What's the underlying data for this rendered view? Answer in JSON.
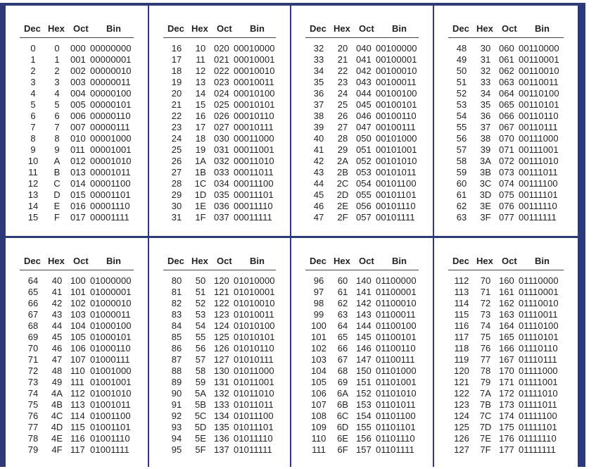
{
  "headers": {
    "dec": "Dec",
    "hex": "Hex",
    "oct": "Oct",
    "bin": "Bin"
  },
  "tables": [
    {
      "rows": [
        [
          "0",
          "0",
          "000",
          "00000000"
        ],
        [
          "1",
          "1",
          "001",
          "00000001"
        ],
        [
          "2",
          "2",
          "002",
          "00000010"
        ],
        [
          "3",
          "3",
          "003",
          "00000011"
        ],
        [
          "4",
          "4",
          "004",
          "00000100"
        ],
        [
          "5",
          "5",
          "005",
          "00000101"
        ],
        [
          "6",
          "6",
          "006",
          "00000110"
        ],
        [
          "7",
          "7",
          "007",
          "00000111"
        ],
        [
          "8",
          "8",
          "010",
          "00001000"
        ],
        [
          "9",
          "9",
          "011",
          "00001001"
        ],
        [
          "10",
          "A",
          "012",
          "00001010"
        ],
        [
          "11",
          "B",
          "013",
          "00001011"
        ],
        [
          "12",
          "C",
          "014",
          "00001100"
        ],
        [
          "13",
          "D",
          "015",
          "00001101"
        ],
        [
          "14",
          "E",
          "016",
          "00001110"
        ],
        [
          "15",
          "F",
          "017",
          "00001111"
        ]
      ]
    },
    {
      "rows": [
        [
          "16",
          "10",
          "020",
          "00010000"
        ],
        [
          "17",
          "11",
          "021",
          "00010001"
        ],
        [
          "18",
          "12",
          "022",
          "00010010"
        ],
        [
          "19",
          "13",
          "023",
          "00010011"
        ],
        [
          "20",
          "14",
          "024",
          "00010100"
        ],
        [
          "21",
          "15",
          "025",
          "00010101"
        ],
        [
          "22",
          "16",
          "026",
          "00010110"
        ],
        [
          "23",
          "17",
          "027",
          "00010111"
        ],
        [
          "24",
          "18",
          "030",
          "00011000"
        ],
        [
          "25",
          "19",
          "031",
          "00011001"
        ],
        [
          "26",
          "1A",
          "032",
          "00011010"
        ],
        [
          "27",
          "1B",
          "033",
          "00011011"
        ],
        [
          "28",
          "1C",
          "034",
          "00011100"
        ],
        [
          "29",
          "1D",
          "035",
          "00011101"
        ],
        [
          "30",
          "1E",
          "036",
          "00011110"
        ],
        [
          "31",
          "1F",
          "037",
          "00011111"
        ]
      ]
    },
    {
      "rows": [
        [
          "32",
          "20",
          "040",
          "00100000"
        ],
        [
          "33",
          "21",
          "041",
          "00100001"
        ],
        [
          "34",
          "22",
          "042",
          "00100010"
        ],
        [
          "35",
          "23",
          "043",
          "00100011"
        ],
        [
          "36",
          "24",
          "044",
          "00100100"
        ],
        [
          "37",
          "25",
          "045",
          "00100101"
        ],
        [
          "38",
          "26",
          "046",
          "00100110"
        ],
        [
          "39",
          "27",
          "047",
          "00100111"
        ],
        [
          "40",
          "28",
          "050",
          "00101000"
        ],
        [
          "41",
          "29",
          "051",
          "00101001"
        ],
        [
          "42",
          "2A",
          "052",
          "00101010"
        ],
        [
          "43",
          "2B",
          "053",
          "00101011"
        ],
        [
          "44",
          "2C",
          "054",
          "00101100"
        ],
        [
          "45",
          "2D",
          "055",
          "00101101"
        ],
        [
          "46",
          "2E",
          "056",
          "00101110"
        ],
        [
          "47",
          "2F",
          "057",
          "00101111"
        ]
      ]
    },
    {
      "rows": [
        [
          "48",
          "30",
          "060",
          "00110000"
        ],
        [
          "49",
          "31",
          "061",
          "00110001"
        ],
        [
          "50",
          "32",
          "062",
          "00110010"
        ],
        [
          "51",
          "33",
          "063",
          "00110011"
        ],
        [
          "52",
          "34",
          "064",
          "00110100"
        ],
        [
          "53",
          "35",
          "065",
          "00110101"
        ],
        [
          "54",
          "36",
          "066",
          "00110110"
        ],
        [
          "55",
          "37",
          "067",
          "00110111"
        ],
        [
          "56",
          "38",
          "070",
          "00111000"
        ],
        [
          "57",
          "39",
          "071",
          "00111001"
        ],
        [
          "58",
          "3A",
          "072",
          "00111010"
        ],
        [
          "59",
          "3B",
          "073",
          "00111011"
        ],
        [
          "60",
          "3C",
          "074",
          "00111100"
        ],
        [
          "61",
          "3D",
          "075",
          "00111101"
        ],
        [
          "62",
          "3E",
          "076",
          "00111110"
        ],
        [
          "63",
          "3F",
          "077",
          "00111111"
        ]
      ]
    },
    {
      "rows": [
        [
          "64",
          "40",
          "100",
          "01000000"
        ],
        [
          "65",
          "41",
          "101",
          "01000001"
        ],
        [
          "66",
          "42",
          "102",
          "01000010"
        ],
        [
          "67",
          "43",
          "103",
          "01000011"
        ],
        [
          "68",
          "44",
          "104",
          "01000100"
        ],
        [
          "69",
          "45",
          "105",
          "01000101"
        ],
        [
          "70",
          "46",
          "106",
          "01000110"
        ],
        [
          "71",
          "47",
          "107",
          "01000111"
        ],
        [
          "72",
          "48",
          "110",
          "01001000"
        ],
        [
          "73",
          "49",
          "111",
          "01001001"
        ],
        [
          "74",
          "4A",
          "112",
          "01001010"
        ],
        [
          "75",
          "4B",
          "113",
          "01001011"
        ],
        [
          "76",
          "4C",
          "114",
          "01001100"
        ],
        [
          "77",
          "4D",
          "115",
          "01001101"
        ],
        [
          "78",
          "4E",
          "116",
          "01001110"
        ],
        [
          "79",
          "4F",
          "117",
          "01001111"
        ]
      ]
    },
    {
      "rows": [
        [
          "80",
          "50",
          "120",
          "01010000"
        ],
        [
          "81",
          "51",
          "121",
          "01010001"
        ],
        [
          "82",
          "52",
          "122",
          "01010010"
        ],
        [
          "83",
          "53",
          "123",
          "01010011"
        ],
        [
          "84",
          "54",
          "124",
          "01010100"
        ],
        [
          "85",
          "55",
          "125",
          "01010101"
        ],
        [
          "86",
          "56",
          "126",
          "01010110"
        ],
        [
          "87",
          "57",
          "127",
          "01010111"
        ],
        [
          "88",
          "58",
          "130",
          "01011000"
        ],
        [
          "89",
          "59",
          "131",
          "01011001"
        ],
        [
          "90",
          "5A",
          "132",
          "01011010"
        ],
        [
          "91",
          "5B",
          "133",
          "01011011"
        ],
        [
          "92",
          "5C",
          "134",
          "01011100"
        ],
        [
          "93",
          "5D",
          "135",
          "01011101"
        ],
        [
          "94",
          "5E",
          "136",
          "01011110"
        ],
        [
          "95",
          "5F",
          "137",
          "01011111"
        ]
      ]
    },
    {
      "rows": [
        [
          "96",
          "60",
          "140",
          "01100000"
        ],
        [
          "97",
          "61",
          "141",
          "01100001"
        ],
        [
          "98",
          "62",
          "142",
          "01100010"
        ],
        [
          "99",
          "63",
          "143",
          "01100011"
        ],
        [
          "100",
          "64",
          "144",
          "01100100"
        ],
        [
          "101",
          "65",
          "145",
          "01100101"
        ],
        [
          "102",
          "66",
          "146",
          "01100110"
        ],
        [
          "103",
          "67",
          "147",
          "01100111"
        ],
        [
          "104",
          "68",
          "150",
          "01101000"
        ],
        [
          "105",
          "69",
          "151",
          "01101001"
        ],
        [
          "106",
          "6A",
          "152",
          "01101010"
        ],
        [
          "107",
          "6B",
          "153",
          "01101011"
        ],
        [
          "108",
          "6C",
          "154",
          "01101100"
        ],
        [
          "109",
          "6D",
          "155",
          "01101101"
        ],
        [
          "110",
          "6E",
          "156",
          "01101110"
        ],
        [
          "111",
          "6F",
          "157",
          "01101111"
        ]
      ]
    },
    {
      "rows": [
        [
          "112",
          "70",
          "160",
          "01110000"
        ],
        [
          "113",
          "71",
          "161",
          "01110001"
        ],
        [
          "114",
          "72",
          "162",
          "01110010"
        ],
        [
          "115",
          "73",
          "163",
          "01110011"
        ],
        [
          "116",
          "74",
          "164",
          "01110100"
        ],
        [
          "117",
          "75",
          "165",
          "01110101"
        ],
        [
          "118",
          "76",
          "166",
          "01110110"
        ],
        [
          "119",
          "77",
          "167",
          "01110111"
        ],
        [
          "120",
          "78",
          "170",
          "01111000"
        ],
        [
          "121",
          "79",
          "171",
          "01111001"
        ],
        [
          "122",
          "7A",
          "172",
          "01111010"
        ],
        [
          "123",
          "7B",
          "173",
          "01111011"
        ],
        [
          "124",
          "7C",
          "174",
          "01111100"
        ],
        [
          "125",
          "7D",
          "175",
          "01111101"
        ],
        [
          "126",
          "7E",
          "176",
          "01111110"
        ],
        [
          "127",
          "7F",
          "177",
          "01111111"
        ]
      ]
    }
  ]
}
